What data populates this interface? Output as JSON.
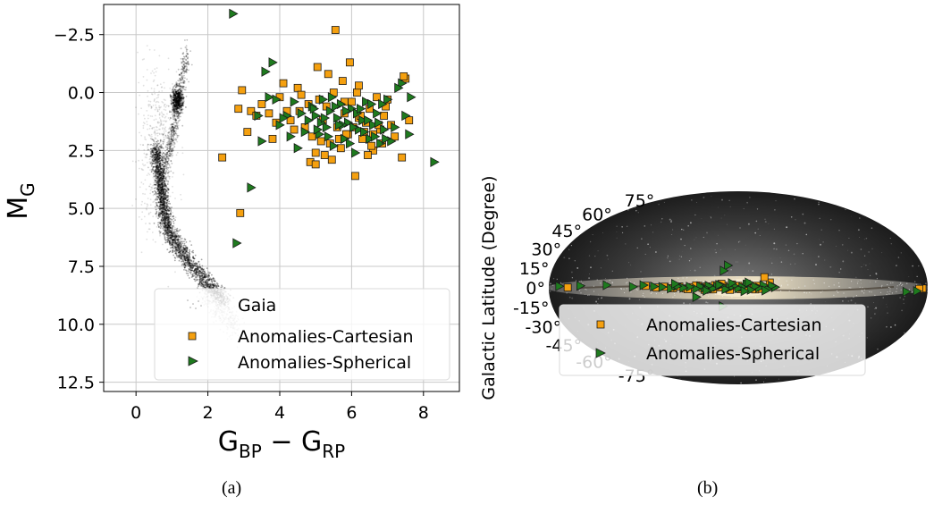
{
  "captions": {
    "a": "(a)",
    "b": "(b)"
  },
  "colors": {
    "cartesian": "#f5a00f",
    "spherical": "#1e7a1e",
    "marker_edge": "#1a1a1a",
    "gaia": "#000000",
    "grid": "#c8c8c8"
  },
  "chart_data": [
    {
      "type": "scatter",
      "panel": "a",
      "xlabel_base": "G",
      "xlabel_sub1": "BP",
      "xlabel_minus": " − ",
      "xlabel_sub2": "RP",
      "ylabel_base": "M",
      "ylabel_sub": "G",
      "xlim": [
        -0.9,
        9.0
      ],
      "ylim": [
        12.9,
        -3.8
      ],
      "y_inverted": true,
      "xticks": [
        0,
        2,
        4,
        6,
        8
      ],
      "xtick_labels": [
        "0",
        "2",
        "4",
        "6",
        "8"
      ],
      "yticks": [
        -2.5,
        0.0,
        2.5,
        5.0,
        7.5,
        10.0,
        12.5
      ],
      "ytick_labels": [
        "−2.5",
        "0.0",
        "2.5",
        "5.0",
        "7.5",
        "10.0",
        "12.5"
      ],
      "grid": true,
      "legend_placement": "bottom-right",
      "legend": [
        "Gaia",
        "Anomalies-Cartesian",
        "Anomalies-Spherical"
      ],
      "series": [
        {
          "name": "Gaia",
          "marker": "dot-cloud",
          "shape": "main sequence from (0.6, 2.5) to (2.5, 9.0) plus red clump near (1.2, 0.3) and giant branch"
        },
        {
          "name": "Anomalies-Cartesian",
          "marker": "square",
          "x": [
            2.4,
            2.9,
            2.85,
            3.2,
            3.35,
            3.5,
            3.7,
            3.9,
            4.0,
            4.1,
            4.2,
            4.4,
            4.5,
            4.6,
            4.8,
            4.9,
            5.0,
            5.1,
            5.2,
            5.3,
            5.4,
            5.5,
            5.6,
            5.7,
            5.8,
            5.9,
            6.0,
            6.1,
            6.2,
            6.3,
            6.4,
            6.5,
            6.6,
            6.7,
            6.8,
            6.9,
            7.0,
            7.2,
            7.4,
            7.6,
            5.05,
            5.35,
            5.55,
            5.75,
            5.95,
            6.15,
            6.35,
            6.55,
            6.75,
            6.95,
            4.3,
            4.7,
            5.15,
            5.45,
            5.85,
            6.25,
            6.45,
            6.85,
            7.1,
            7.5,
            4.85,
            5.25,
            5.65,
            6.05,
            6.6,
            3.1,
            3.8,
            4.55,
            5.0,
            5.8,
            6.2,
            7.45,
            2.95
          ],
          "y": [
            2.8,
            5.2,
            0.7,
            0.8,
            1.0,
            0.5,
            0.9,
            1.3,
            0.2,
            -0.4,
            0.8,
            1.6,
            -0.2,
            0.1,
            0.5,
            1.9,
            2.6,
            0.3,
            1.2,
            0.6,
            2.2,
            0.0,
            1.5,
            2.4,
            0.9,
            1.8,
            0.4,
            3.6,
            1.1,
            2.0,
            1.3,
            0.7,
            2.5,
            0.2,
            1.6,
            1.0,
            0.3,
            1.9,
            2.8,
            1.2,
            -1.1,
            -0.8,
            -2.7,
            -0.5,
            -1.3,
            0.0,
            1.7,
            2.3,
            1.4,
            0.6,
            1.2,
            1.5,
            2.1,
            2.9,
            1.8,
            1.0,
            2.7,
            2.2,
            1.4,
            -0.6,
            3.0,
            2.7,
            2.0,
            1.5,
            1.8,
            1.7,
            2.0,
            0.8,
            3.1,
            0.4,
            -0.3,
            -0.7,
            -0.1
          ],
          "color": "#f5a00f"
        },
        {
          "name": "Anomalies-Spherical",
          "marker": "triangle-right",
          "x": [
            2.7,
            2.8,
            3.2,
            3.5,
            3.6,
            3.7,
            3.9,
            4.0,
            4.2,
            4.3,
            4.4,
            4.6,
            4.7,
            4.8,
            4.9,
            5.0,
            5.1,
            5.2,
            5.3,
            5.4,
            5.5,
            5.6,
            5.7,
            5.8,
            5.9,
            6.0,
            6.1,
            6.2,
            6.3,
            6.4,
            6.5,
            6.6,
            6.7,
            6.8,
            6.9,
            7.0,
            7.1,
            7.2,
            7.4,
            7.5,
            7.6,
            8.3,
            4.1,
            4.5,
            4.95,
            5.15,
            5.35,
            5.55,
            5.75,
            5.95,
            6.15,
            6.35,
            6.55,
            6.75,
            6.95,
            7.3,
            3.8,
            5.05,
            5.25,
            5.45,
            5.65,
            5.85,
            6.05,
            6.25,
            6.45,
            6.65,
            6.85,
            3.4,
            7.65
          ],
          "y": [
            -3.4,
            6.5,
            4.1,
            2.1,
            -0.9,
            0.2,
            0.3,
            1.4,
            1.0,
            1.9,
            0.4,
            0.9,
            1.7,
            1.2,
            0.6,
            1.0,
            1.8,
            0.3,
            1.5,
            0.8,
            2.3,
            1.1,
            0.5,
            2.0,
            1.3,
            0.7,
            2.6,
            1.6,
            1.2,
            0.4,
            2.0,
            1.4,
            0.9,
            2.2,
            1.6,
            0.3,
            2.1,
            1.5,
            -0.4,
            1.0,
            1.8,
            3.0,
            1.1,
            2.4,
            0.7,
            1.3,
            1.9,
            0.6,
            1.4,
            2.2,
            0.9,
            1.7,
            0.5,
            1.3,
            2.0,
            -0.2,
            -1.3,
            1.6,
            1.1,
            0.2,
            1.4,
            0.8,
            1.5,
            0.7,
            1.2,
            1.9,
            0.5,
            1.0,
            0.2
          ],
          "color": "#1e7a1e"
        }
      ]
    },
    {
      "type": "scatter",
      "panel": "b",
      "projection": "mollweide",
      "background": "Milky Way all-sky image",
      "ylabel": "Galactic Latitude (Degree)",
      "lat_tick_labels": [
        "75°",
        "60°",
        "45°",
        "30°",
        "15°",
        "0°",
        "-15°",
        "-30°",
        "-45°",
        "-60°",
        "-75°"
      ],
      "lat_ticks": [
        75,
        60,
        45,
        30,
        15,
        0,
        -15,
        -30,
        -45,
        -60,
        -75
      ],
      "legend_placement": "lower-right",
      "legend": [
        "Anomalies-Cartesian",
        "Anomalies-Spherical"
      ],
      "series": [
        {
          "name": "Anomalies-Cartesian",
          "marker": "square",
          "lon": [
            -175,
            -172,
            -30,
            -25,
            -18,
            -14,
            -10,
            -6,
            -2,
            2,
            6,
            10,
            14,
            18,
            22,
            26,
            30,
            34,
            38,
            44,
            50,
            56,
            62,
            70,
            78,
            88,
            162,
            -20,
            -16,
            -8,
            0,
            8,
            16,
            24,
            32,
            40,
            48
          ],
          "lat": [
            -0.5,
            -0.8,
            4,
            8,
            1.5,
            -0.5,
            2,
            0.5,
            -1,
            1,
            2.5,
            -0.8,
            1.5,
            0.3,
            2,
            -0.5,
            1,
            0,
            1.5,
            0.5,
            -0.5,
            1,
            -0.3,
            0.8,
            0.2,
            1.5,
            0.2,
            -0.8,
            -1.2,
            3,
            1.5,
            -1.5,
            3,
            -1.2,
            -1.5,
            1.8,
            -1
          ],
          "color": "#f5a00f"
        },
        {
          "name": "Anomalies-Spherical",
          "marker": "triangle-right",
          "lon": [
            -170,
            -160,
            -35,
            -32,
            -28,
            -24,
            -20,
            -16,
            -12,
            -8,
            -4,
            0,
            4,
            8,
            12,
            16,
            20,
            24,
            28,
            32,
            36,
            40,
            46,
            52,
            58,
            64,
            72,
            80,
            100,
            125,
            150,
            170,
            10,
            14,
            -10,
            15,
            40,
            60,
            90,
            -26,
            -6,
            6,
            18,
            30
          ],
          "lat": [
            -2.5,
            -3,
            0.5,
            1.5,
            -1,
            2,
            0,
            1,
            -1.5,
            2.5,
            0.5,
            -0.5,
            1.5,
            0,
            -1,
            2,
            0.8,
            -0.5,
            1.5,
            0,
            1,
            -0.8,
            0.8,
            0,
            1.2,
            -0.5,
            0.6,
            1,
            0.8,
            2,
            1.5,
            1.2,
            17,
            13,
            4,
            -14,
            -7,
            3,
            2,
            -2,
            -2.5,
            3.5,
            2.2,
            -2.2
          ],
          "color": "#1e7a1e"
        }
      ]
    }
  ]
}
